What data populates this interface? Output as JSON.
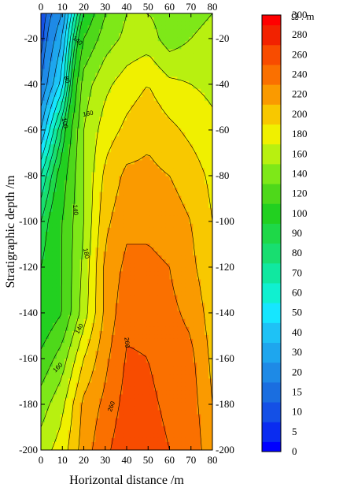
{
  "chart_data": {
    "type": "heatmap",
    "xlabel": "Horizontal distance /m",
    "ylabel": "Stratigraphic depth /m",
    "xlim": [
      0,
      80
    ],
    "ylim": [
      -200,
      -9
    ],
    "x_ticks": [
      0,
      10,
      20,
      30,
      40,
      50,
      60,
      70,
      80
    ],
    "x_tick_labels": [
      "0",
      "10",
      "20",
      "30",
      "40",
      "50",
      "60",
      "70",
      "80"
    ],
    "y_ticks": [
      -20,
      -40,
      -60,
      -80,
      -100,
      -120,
      -140,
      -160,
      -180,
      -200
    ],
    "y_tick_labels": [
      "-20",
      "-40",
      "-60",
      "-80",
      "-100",
      "-120",
      "-140",
      "-160",
      "-180",
      "-200"
    ],
    "grid": false,
    "colorbar": {
      "placement": "right",
      "unit": "Ω . m",
      "levels": [
        0,
        5,
        10,
        15,
        20,
        30,
        40,
        50,
        60,
        70,
        80,
        90,
        100,
        120,
        140,
        160,
        180,
        200,
        220,
        240,
        260,
        280,
        300
      ],
      "labels": [
        "0",
        "5",
        "10",
        "15",
        "20",
        "30",
        "40",
        "50",
        "60",
        "70",
        "80",
        "90",
        "100",
        "120",
        "140",
        "160",
        "180",
        "200",
        "220",
        "240",
        "260",
        "280",
        "300"
      ],
      "colors": [
        "#0000ff",
        "#0a2cf0",
        "#1450e6",
        "#1a6ee0",
        "#1e8ae6",
        "#1ea6ee",
        "#1ec2f6",
        "#16e6ff",
        "#10f0d0",
        "#10e8a0",
        "#18de70",
        "#1ed848",
        "#22d020",
        "#4ed81a",
        "#7ee818",
        "#b8f010",
        "#f0f000",
        "#f8c800",
        "#fa9a00",
        "#fa7000",
        "#f84c00",
        "#f22200",
        "#ff0000"
      ]
    },
    "contour_labels": [
      "140",
      "80",
      "100",
      "140",
      "160",
      "180",
      "140",
      "160",
      "260",
      "260"
    ],
    "grid_x": [
      0,
      10,
      20,
      30,
      40,
      50,
      60,
      70,
      80
    ],
    "grid_y": [
      -9,
      -20,
      -40,
      -60,
      -80,
      -100,
      -120,
      -140,
      -160,
      -180,
      -200
    ],
    "z": [
      [
        10,
        30,
        100,
        140,
        160,
        160,
        150,
        155,
        160
      ],
      [
        12,
        40,
        120,
        150,
        165,
        170,
        150,
        160,
        165
      ],
      [
        20,
        55,
        150,
        175,
        190,
        200,
        185,
        180,
        175
      ],
      [
        40,
        90,
        160,
        190,
        205,
        215,
        205,
        195,
        185
      ],
      [
        70,
        110,
        160,
        205,
        225,
        225,
        220,
        210,
        195
      ],
      [
        90,
        120,
        160,
        215,
        235,
        235,
        230,
        220,
        200
      ],
      [
        100,
        120,
        165,
        225,
        245,
        245,
        240,
        225,
        205
      ],
      [
        100,
        120,
        170,
        225,
        255,
        255,
        245,
        235,
        210
      ],
      [
        125,
        150,
        200,
        235,
        262,
        260,
        250,
        245,
        215
      ],
      [
        150,
        175,
        225,
        245,
        268,
        265,
        255,
        250,
        220
      ],
      [
        170,
        190,
        230,
        255,
        275,
        270,
        260,
        255,
        225
      ]
    ]
  }
}
